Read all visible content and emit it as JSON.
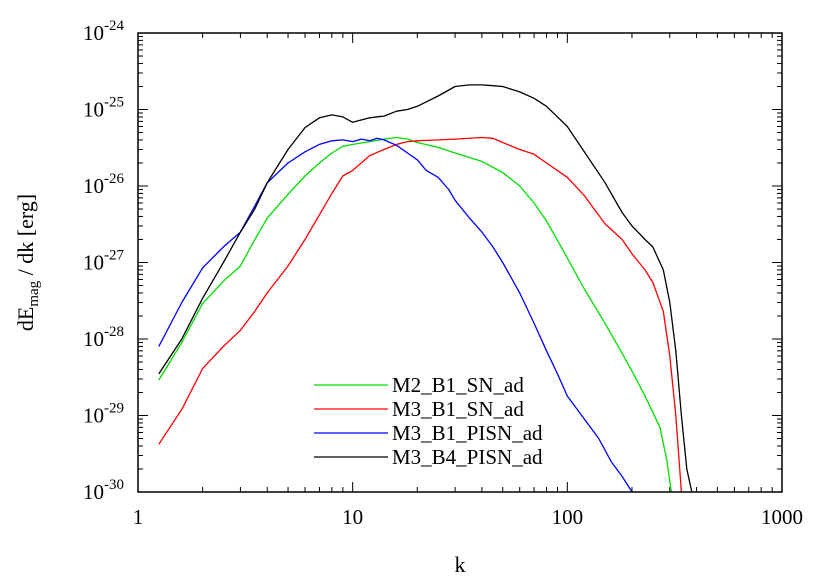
{
  "chart_data": {
    "type": "line",
    "xlabel": "k",
    "ylabel": "dE_mag / dk [erg]",
    "ylabel_parts": {
      "main": "dE",
      "sub": "mag",
      "rest": " / dk [erg]"
    },
    "xscale": "log",
    "yscale": "log",
    "xlim": [
      1,
      1000
    ],
    "ylim": [
      1e-30,
      1e-24
    ],
    "grid": false,
    "legend_position": "bottom-center",
    "x_ticks": [
      {
        "value": 1,
        "label": "1"
      },
      {
        "value": 10,
        "label": "10"
      },
      {
        "value": 100,
        "label": "100"
      },
      {
        "value": 1000,
        "label": "1000"
      }
    ],
    "y_ticks": [
      {
        "value": 1e-30,
        "base": "10",
        "exp": "-30"
      },
      {
        "value": 1e-29,
        "base": "10",
        "exp": "-29"
      },
      {
        "value": 1e-28,
        "base": "10",
        "exp": "-28"
      },
      {
        "value": 1e-27,
        "base": "10",
        "exp": "-27"
      },
      {
        "value": 1e-26,
        "base": "10",
        "exp": "-26"
      },
      {
        "value": 1e-25,
        "base": "10",
        "exp": "-25"
      },
      {
        "value": 1e-24,
        "base": "10",
        "exp": "-24"
      }
    ],
    "series": [
      {
        "name": "M2_B1_SN_ad",
        "color": "#00dd00",
        "x": [
          1.25,
          1.6,
          2.0,
          2.5,
          3.0,
          3.5,
          4.0,
          5.0,
          6.0,
          7.0,
          8.0,
          9.0,
          10.0,
          12.0,
          14.0,
          16.0,
          18.0,
          20.0,
          25.0,
          30.0,
          40.0,
          50.0,
          60.0,
          70.0,
          80.0,
          100.0,
          120.0,
          150.0,
          180.0,
          200.0,
          230.0,
          250.0,
          270.0,
          290.0,
          305.0
        ],
        "y": [
          2.9e-29,
          9e-29,
          2.9e-28,
          5.7e-28,
          9e-28,
          2e-27,
          3.8e-27,
          7.8e-27,
          1.35e-26,
          2e-26,
          2.7e-26,
          3.3e-26,
          3.5e-26,
          3.8e-26,
          4.1e-26,
          4.3e-26,
          4.1e-26,
          3.7e-26,
          3.2e-26,
          2.7e-26,
          2.1e-26,
          1.5e-26,
          1e-26,
          6e-27,
          3.5e-27,
          1.15e-27,
          4.5e-28,
          1.6e-28,
          6.5e-29,
          3.8e-29,
          1.8e-29,
          1.1e-29,
          7e-30,
          2.7e-30,
          1e-30
        ]
      },
      {
        "name": "M3_B1_SN_ad",
        "color": "#ff0000",
        "x": [
          1.25,
          1.6,
          2.0,
          2.5,
          3.0,
          3.5,
          4.0,
          5.0,
          6.0,
          7.0,
          8.0,
          9.0,
          10.0,
          12.0,
          14.0,
          16.0,
          18.0,
          20.0,
          25.0,
          30.0,
          40.0,
          45.0,
          50.0,
          60.0,
          70.0,
          80.0,
          100.0,
          120.0,
          150.0,
          180.0,
          200.0,
          230.0,
          250.0,
          280.0,
          300.0,
          320.0,
          340.0
        ],
        "y": [
          4.2e-30,
          1.2e-29,
          4.1e-29,
          8e-29,
          1.3e-28,
          2.3e-28,
          4e-28,
          9e-28,
          2e-27,
          4.2e-27,
          8e-27,
          1.35e-26,
          1.6e-26,
          2.5e-26,
          3e-26,
          3.5e-26,
          3.8e-26,
          3.9e-26,
          4e-26,
          4.1e-26,
          4.3e-26,
          4.2e-26,
          3.7e-26,
          3e-26,
          2.6e-26,
          2e-26,
          1.3e-26,
          7.5e-27,
          3.2e-27,
          2e-27,
          1.3e-27,
          8e-28,
          5.5e-28,
          2.3e-28,
          6e-29,
          1e-29,
          1e-30
        ]
      },
      {
        "name": "M3_B1_PISN_ad",
        "color": "#0000ff",
        "x": [
          1.25,
          1.6,
          2.0,
          2.5,
          3.0,
          3.5,
          4.0,
          5.0,
          6.0,
          7.0,
          8.0,
          9.0,
          10.0,
          11.0,
          12.0,
          13.0,
          14.0,
          16.0,
          18.0,
          20.0,
          22.0,
          25.0,
          28.0,
          30.0,
          35.0,
          40.0,
          45.0,
          50.0,
          60.0,
          70.0,
          80.0,
          90.0,
          100.0,
          120.0,
          140.0,
          160.0,
          180.0,
          200.0
        ],
        "y": [
          8e-29,
          3e-28,
          8.5e-28,
          1.6e-27,
          2.5e-27,
          5.5e-27,
          1.1e-26,
          2e-26,
          2.8e-26,
          3.5e-26,
          3.9e-26,
          4e-26,
          3.8e-26,
          4.1e-26,
          3.9e-26,
          4.2e-26,
          4e-26,
          3.4e-26,
          2.7e-26,
          2.2e-26,
          1.6e-26,
          1.3e-26,
          9e-27,
          6.5e-27,
          3.8e-27,
          2.5e-27,
          1.6e-27,
          1e-27,
          4e-28,
          1.6e-28,
          7e-29,
          3.5e-29,
          1.8e-29,
          9e-30,
          5e-30,
          2.5e-30,
          1.6e-30,
          1e-30
        ]
      },
      {
        "name": "M3_B4_PISN_ad",
        "color": "#000000",
        "x": [
          1.25,
          1.6,
          2.0,
          2.5,
          3.0,
          3.5,
          4.0,
          5.0,
          6.0,
          7.0,
          8.0,
          9.0,
          10.0,
          12.0,
          14.0,
          16.0,
          18.0,
          20.0,
          25.0,
          30.0,
          35.0,
          40.0,
          45.0,
          50.0,
          60.0,
          70.0,
          80.0,
          100.0,
          120.0,
          150.0,
          180.0,
          200.0,
          230.0,
          250.0,
          280.0,
          300.0,
          320.0,
          340.0,
          360.0,
          380.0
        ],
        "y": [
          3.5e-29,
          1e-28,
          3.4e-28,
          1e-27,
          2.5e-27,
          5e-27,
          1.1e-26,
          3e-26,
          5.8e-26,
          7.8e-26,
          8.5e-26,
          8e-26,
          6.8e-26,
          7.8e-26,
          8.2e-26,
          9.5e-26,
          1e-25,
          1.1e-25,
          1.5e-25,
          2e-25,
          2.1e-25,
          2.1e-25,
          2.05e-25,
          2e-25,
          1.7e-25,
          1.4e-25,
          1.1e-25,
          6e-26,
          2.8e-26,
          1.1e-26,
          4.5e-27,
          3e-27,
          2e-27,
          1.6e-27,
          8e-28,
          3e-28,
          7e-29,
          1e-29,
          2e-30,
          1e-30
        ]
      }
    ]
  }
}
